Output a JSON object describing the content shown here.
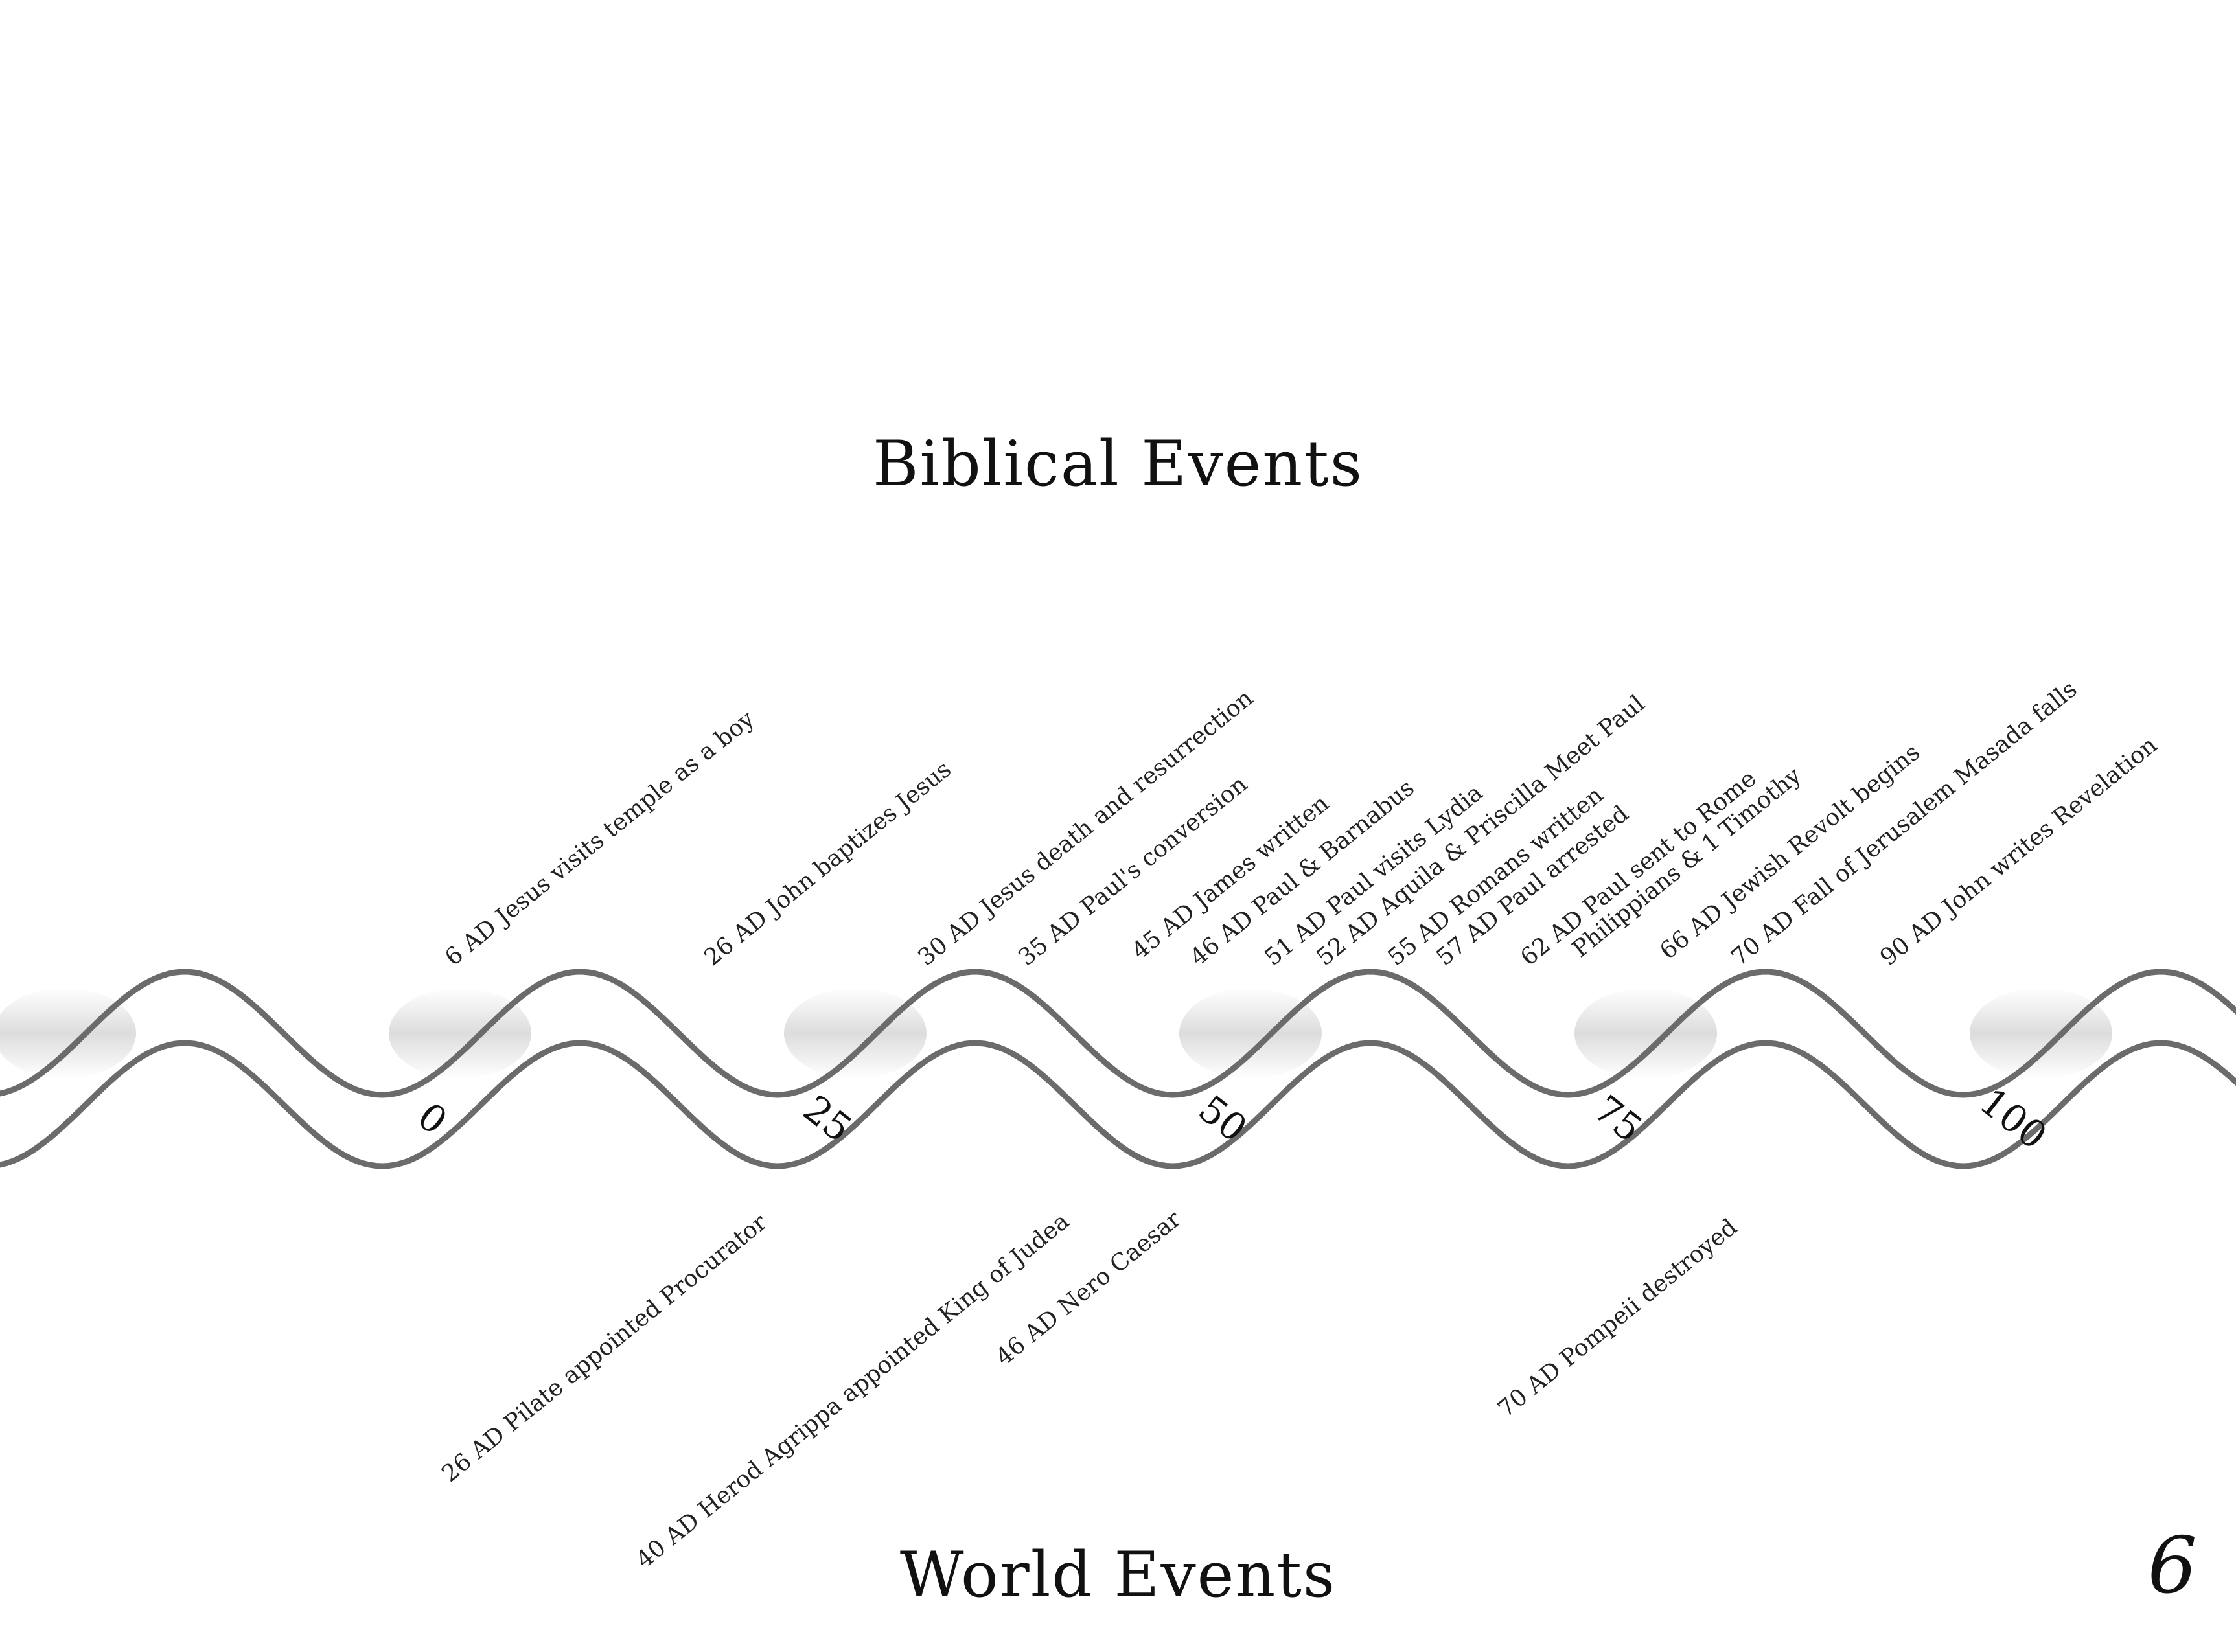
{
  "headings": {
    "biblical": "Biblical  Events",
    "world": "World Events"
  },
  "page_number": "6",
  "ribbon": {
    "scale_labels": [
      "0",
      "25",
      "50",
      "75",
      "100"
    ],
    "stroke_color": "#6b6b6b",
    "shade_color": "#d9d9d9"
  },
  "biblical_events": [
    {
      "text": "6 AD Jesus visits temple as a boy"
    },
    {
      "text": "26 AD John baptizes Jesus"
    },
    {
      "text": "30 AD Jesus death and resurrection"
    },
    {
      "text": "35 AD Paul's conversion"
    },
    {
      "text": "45 AD James written"
    },
    {
      "text": "46 AD Paul & Barnabus"
    },
    {
      "text": "51 AD Paul visits Lydia"
    },
    {
      "text": "52 AD Aquila & Priscilla Meet Paul"
    },
    {
      "text": "55 AD Romans written"
    },
    {
      "text": "57 AD Paul arrested"
    },
    {
      "text": "62 AD Paul sent to Rome",
      "text2": "Philippians & 1 Timothy"
    },
    {
      "text": "66 AD Jewish Revolt begins"
    },
    {
      "text": "70 AD Fall of Jerusalem Masada falls"
    },
    {
      "text": "90 AD  John writes Revelation"
    }
  ],
  "world_events": [
    {
      "text": "26 AD Pilate appointed Procurator"
    },
    {
      "text": "40 AD Herod Agrippa appointed King of Judea"
    },
    {
      "text": "46 AD Nero Caesar"
    },
    {
      "text": "70 AD Pompeii destroyed"
    }
  ]
}
